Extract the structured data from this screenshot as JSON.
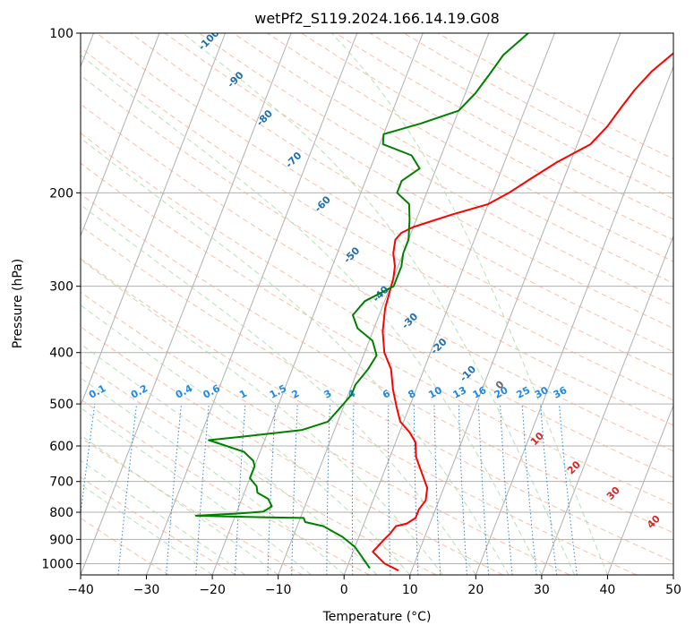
{
  "chart_data": {
    "type": "line",
    "subtype": "skew-t log-p",
    "title": "wetPf2_S119.2024.166.14.19.G08",
    "xlabel": "Temperature (°C)",
    "ylabel": "Pressure (hPa)",
    "xlim": [
      -40,
      50
    ],
    "ylim": [
      1050,
      100
    ],
    "y_scale": "log",
    "grid": true,
    "x_ticks": [
      "−40",
      "−30",
      "−20",
      "−10",
      "0",
      "10",
      "20",
      "30",
      "40",
      "50"
    ],
    "x_tick_values": [
      -40,
      -30,
      -20,
      -10,
      0,
      10,
      20,
      30,
      40,
      50
    ],
    "y_ticks": [
      "100",
      "200",
      "300",
      "400",
      "500",
      "600",
      "700",
      "800",
      "900",
      "1000"
    ],
    "y_tick_values": [
      100,
      200,
      300,
      400,
      500,
      600,
      700,
      800,
      900,
      1000
    ],
    "colors": {
      "temperature": "#ff0000",
      "dewpoint": "#008000",
      "isotherm": "#b0b0b0",
      "dry_adiabat": "#f4a582",
      "moist_adiabat": "#a6d8a6",
      "mixing_ratio": "#1e88e5",
      "saturation_label": "#1f6fb0",
      "theta_e_label": "#d62728",
      "outer_arc": "#d9c4a8"
    },
    "series": [
      {
        "key": "temperature",
        "points": [
          [
            8.0,
            1030
          ],
          [
            5.5,
            1000
          ],
          [
            3.0,
            950
          ],
          [
            4.0,
            900
          ],
          [
            4.5,
            880
          ],
          [
            5.0,
            850
          ],
          [
            6.5,
            840
          ],
          [
            7.5,
            820
          ],
          [
            7.5,
            790
          ],
          [
            8.0,
            760
          ],
          [
            7.5,
            720
          ],
          [
            6.0,
            680
          ],
          [
            4.0,
            630
          ],
          [
            3.0,
            590
          ],
          [
            1.5,
            565
          ],
          [
            -0.5,
            540
          ],
          [
            -2.0,
            505
          ],
          [
            -3.5,
            470
          ],
          [
            -5.0,
            430
          ],
          [
            -7.0,
            400
          ],
          [
            -8.5,
            365
          ],
          [
            -9.5,
            330
          ],
          [
            -10.0,
            290
          ],
          [
            -10.5,
            275
          ],
          [
            -11.5,
            260
          ],
          [
            -12.0,
            245
          ],
          [
            -11.5,
            238
          ],
          [
            -10.0,
            232
          ],
          [
            -5.0,
            220
          ],
          [
            0.0,
            210
          ],
          [
            2.5,
            200
          ],
          [
            5.0,
            188
          ],
          [
            8.0,
            175
          ],
          [
            12.0,
            162
          ],
          [
            13.5,
            150
          ],
          [
            14.5,
            138
          ],
          [
            15.5,
            128
          ],
          [
            17.0,
            118
          ],
          [
            19.5,
            108
          ],
          [
            21.0,
            100
          ]
        ]
      },
      {
        "key": "dewpoint",
        "points": [
          [
            3.5,
            1020
          ],
          [
            2.0,
            980
          ],
          [
            0.0,
            930
          ],
          [
            -2.5,
            890
          ],
          [
            -6.0,
            850
          ],
          [
            -9.0,
            835
          ],
          [
            -9.5,
            820
          ],
          [
            -15.0,
            818
          ],
          [
            -21.0,
            815
          ],
          [
            -26.0,
            812
          ],
          [
            -20.0,
            805
          ],
          [
            -16.0,
            798
          ],
          [
            -15.0,
            780
          ],
          [
            -16.0,
            755
          ],
          [
            -18.0,
            735
          ],
          [
            -18.5,
            715
          ],
          [
            -20.0,
            690
          ],
          [
            -20.0,
            655
          ],
          [
            -20.5,
            640
          ],
          [
            -22.5,
            615
          ],
          [
            -28.5,
            585
          ],
          [
            -23.0,
            575
          ],
          [
            -15.0,
            560
          ],
          [
            -11.5,
            540
          ],
          [
            -10.5,
            510
          ],
          [
            -9.5,
            480
          ],
          [
            -9.5,
            460
          ],
          [
            -8.5,
            430
          ],
          [
            -8.0,
            405
          ],
          [
            -9.5,
            380
          ],
          [
            -12.5,
            360
          ],
          [
            -14.0,
            340
          ],
          [
            -13.0,
            320
          ],
          [
            -9.5,
            300
          ],
          [
            -9.5,
            275
          ],
          [
            -10.0,
            260
          ],
          [
            -10.0,
            245
          ],
          [
            -11.0,
            225
          ],
          [
            -12.0,
            210
          ],
          [
            -14.5,
            200
          ],
          [
            -14.5,
            190
          ],
          [
            -12.5,
            180
          ],
          [
            -14.5,
            170
          ],
          [
            -19.5,
            162
          ],
          [
            -20.0,
            155
          ],
          [
            -15.0,
            148
          ],
          [
            -10.0,
            140
          ],
          [
            -8.5,
            130
          ],
          [
            -7.5,
            120
          ],
          [
            -6.5,
            110
          ],
          [
            -4.0,
            100
          ]
        ]
      }
    ],
    "annotations": {
      "saturation_labels": [
        "-100",
        "-90",
        "-80",
        "-70",
        "-60",
        "-50",
        "-40",
        "-30",
        "-20",
        "-10"
      ],
      "saturation_label_values": [
        -100,
        -90,
        -80,
        -70,
        -60,
        -50,
        -40,
        -30,
        -20,
        -10
      ],
      "mixing_ratio_labels": [
        "0.1",
        "0.2",
        "0.4",
        "0.6",
        "1",
        "1.5",
        "2",
        "3",
        "4",
        "6",
        "8",
        "10",
        "13",
        "16",
        "20",
        "25",
        "30",
        "36"
      ],
      "mixing_ratio_values": [
        0.1,
        0.2,
        0.4,
        0.6,
        1,
        1.5,
        2,
        3,
        4,
        6,
        8,
        10,
        13,
        16,
        20,
        25,
        30,
        36
      ],
      "theta_e_labels": [
        "0",
        "10",
        "20",
        "30",
        "40"
      ],
      "theta_e_values": [
        0,
        10,
        20,
        30,
        40
      ]
    }
  }
}
